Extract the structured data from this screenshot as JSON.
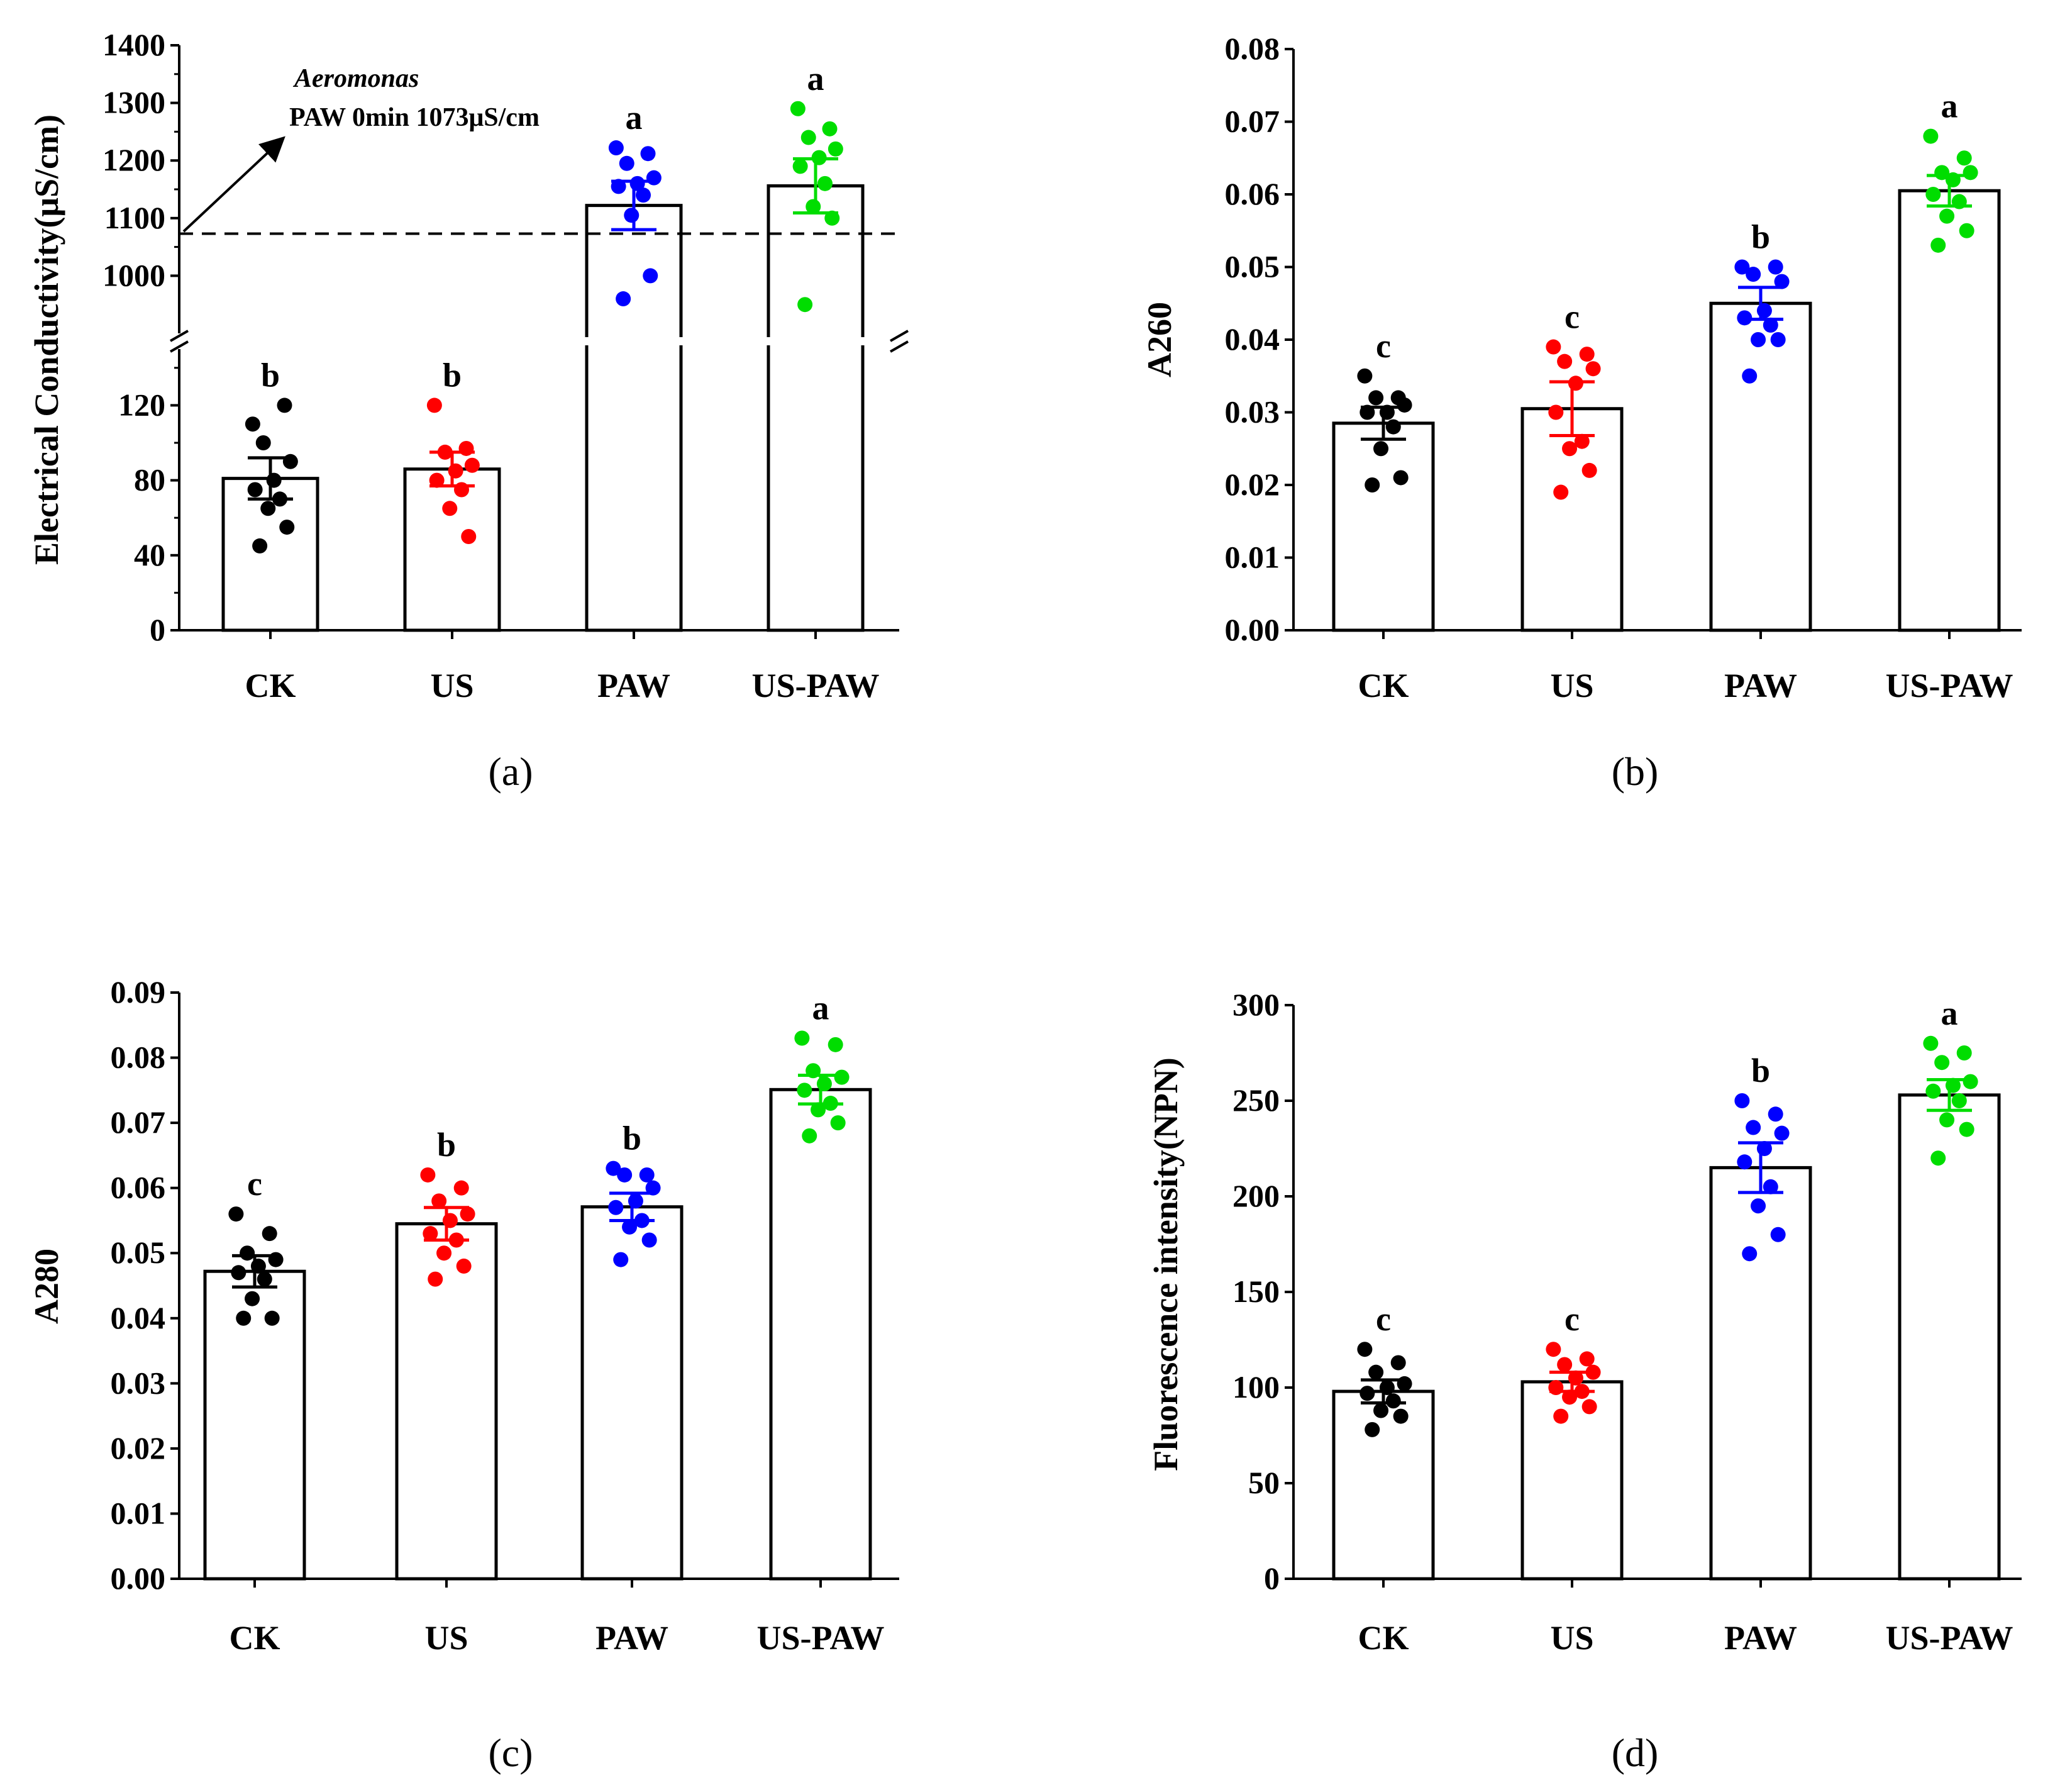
{
  "colors": {
    "CK": "#000000",
    "US": "#ff0000",
    "PAW": "#0000ff",
    "US-PAW": "#00dd00"
  },
  "chart_data": [
    {
      "id": "a",
      "type": "bar",
      "panel_label": "(a)",
      "ylabel": "Electrical Conductivity(μS/cm)",
      "categories": [
        "CK",
        "US",
        "PAW",
        "US-PAW"
      ],
      "broken_axis": true,
      "lower_ylim": [
        0,
        150
      ],
      "lower_ticks": [
        "0",
        "40",
        "80",
        "120"
      ],
      "upper_ylim": [
        900,
        1400
      ],
      "upper_ticks": [
        "1000",
        "1100",
        "1200",
        "1300",
        "1400"
      ],
      "values": [
        81,
        86,
        1122,
        1156
      ],
      "errors": [
        11,
        9,
        42,
        47
      ],
      "letters": [
        "b",
        "b",
        "a",
        "a"
      ],
      "points": [
        [
          110,
          120,
          100,
          90,
          80,
          75,
          70,
          65,
          55,
          45
        ],
        [
          120,
          97,
          95,
          88,
          85,
          80,
          75,
          65,
          50
        ],
        [
          1222,
          1212,
          1195,
          1170,
          1160,
          1155,
          1140,
          1105,
          1000,
          960
        ],
        [
          1290,
          1255,
          1240,
          1220,
          1205,
          1190,
          1160,
          1120,
          1100,
          950
        ]
      ],
      "reference_line": 1073,
      "annotation_organism": "Aeromonas",
      "annotation_text": "PAW 0min 1073μS/cm"
    },
    {
      "id": "b",
      "type": "bar",
      "panel_label": "(b)",
      "ylabel": "A260",
      "categories": [
        "CK",
        "US",
        "PAW",
        "US-PAW"
      ],
      "ylim": [
        0,
        0.08
      ],
      "ticks": [
        "0.00",
        "0.01",
        "0.02",
        "0.03",
        "0.04",
        "0.05",
        "0.06",
        "0.07",
        "0.08"
      ],
      "values": [
        0.0285,
        0.0305,
        0.045,
        0.0605
      ],
      "errors": [
        0.0022,
        0.0037,
        0.0022,
        0.0021
      ],
      "letters": [
        "c",
        "c",
        "b",
        "a"
      ],
      "points": [
        [
          0.035,
          0.032,
          0.032,
          0.031,
          0.03,
          0.03,
          0.028,
          0.025,
          0.021,
          0.02
        ],
        [
          0.039,
          0.038,
          0.037,
          0.036,
          0.034,
          0.03,
          0.026,
          0.025,
          0.022,
          0.019
        ],
        [
          0.05,
          0.05,
          0.049,
          0.048,
          0.044,
          0.043,
          0.042,
          0.04,
          0.04,
          0.035
        ],
        [
          0.068,
          0.065,
          0.063,
          0.063,
          0.062,
          0.06,
          0.059,
          0.057,
          0.055,
          0.053
        ]
      ]
    },
    {
      "id": "c",
      "type": "bar",
      "panel_label": "(c)",
      "ylabel": "A280",
      "categories": [
        "CK",
        "US",
        "PAW",
        "US-PAW"
      ],
      "ylim": [
        0,
        0.09
      ],
      "ticks": [
        "0.00",
        "0.01",
        "0.02",
        "0.03",
        "0.04",
        "0.05",
        "0.06",
        "0.07",
        "0.08",
        "0.09"
      ],
      "values": [
        0.0472,
        0.0545,
        0.0571,
        0.0751
      ],
      "errors": [
        0.0024,
        0.0025,
        0.0021,
        0.0022
      ],
      "letters": [
        "c",
        "b",
        "b",
        "a"
      ],
      "points": [
        [
          0.056,
          0.053,
          0.05,
          0.049,
          0.048,
          0.047,
          0.046,
          0.043,
          0.04,
          0.04
        ],
        [
          0.062,
          0.06,
          0.058,
          0.056,
          0.055,
          0.053,
          0.052,
          0.05,
          0.048,
          0.046
        ],
        [
          0.063,
          0.062,
          0.062,
          0.06,
          0.058,
          0.057,
          0.055,
          0.054,
          0.052,
          0.049
        ],
        [
          0.083,
          0.082,
          0.078,
          0.077,
          0.076,
          0.075,
          0.073,
          0.072,
          0.07,
          0.068
        ]
      ]
    },
    {
      "id": "d",
      "type": "bar",
      "panel_label": "(d)",
      "ylabel": "Fluorescence intensity(NPN)",
      "categories": [
        "CK",
        "US",
        "PAW",
        "US-PAW"
      ],
      "ylim": [
        0,
        300
      ],
      "ticks": [
        "0",
        "50",
        "100",
        "150",
        "200",
        "250",
        "300"
      ],
      "values": [
        98,
        103,
        215,
        253
      ],
      "errors": [
        6,
        5,
        13,
        8
      ],
      "letters": [
        "c",
        "c",
        "b",
        "a"
      ],
      "points": [
        [
          120,
          113,
          108,
          102,
          100,
          97,
          93,
          88,
          85,
          78
        ],
        [
          120,
          115,
          112,
          108,
          105,
          100,
          98,
          95,
          90,
          85
        ],
        [
          250,
          243,
          236,
          233,
          225,
          218,
          205,
          195,
          180,
          170
        ],
        [
          280,
          275,
          270,
          260,
          258,
          255,
          250,
          240,
          235,
          220
        ]
      ]
    }
  ]
}
